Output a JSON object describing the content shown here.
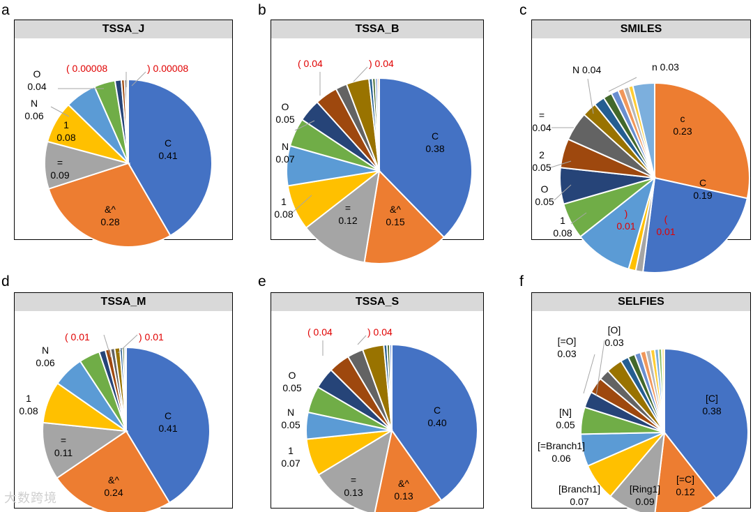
{
  "panels": [
    {
      "letter": "a",
      "title": "TSSA_J",
      "chart_data": {
        "type": "pie",
        "title": "TSSA_J",
        "slices": [
          {
            "label": "C",
            "value": 0.41,
            "color": "#4472c4"
          },
          {
            "label": "&^",
            "value": 0.28,
            "color": "#ed7d31"
          },
          {
            "label": "=",
            "value": 0.09,
            "color": "#a5a5a5"
          },
          {
            "label": "1",
            "value": 0.08,
            "color": "#ffc000"
          },
          {
            "label": "N",
            "value": 0.06,
            "color": "#5b9bd5"
          },
          {
            "label": "O",
            "value": 0.04,
            "color": "#70ad47"
          },
          {
            "label": "",
            "value": 0.012,
            "color": "#264478"
          },
          {
            "label": "",
            "value": 0.006,
            "color": "#9e480e"
          },
          {
            "label": "",
            "value": 0.004,
            "color": "#636363"
          },
          {
            "label": "",
            "value": 0.003,
            "color": "#997300"
          },
          {
            "label": "(",
            "value": 8e-05,
            "color": "#255e91"
          },
          {
            "label": ")",
            "value": 8e-05,
            "color": "#43682b"
          }
        ],
        "annotations": [
          {
            "label": "C",
            "value_text": "0.41"
          },
          {
            "label": "&^",
            "value_text": "0.28"
          },
          {
            "label": "=",
            "value_text": "0.09"
          },
          {
            "label": "1",
            "value_text": "0.08"
          },
          {
            "label": "N",
            "value_text": "0.06"
          },
          {
            "label": "O",
            "value_text": "0.04"
          },
          {
            "label": "(",
            "value_text": "0.00008"
          },
          {
            "label": ")",
            "value_text": "0.00008"
          }
        ]
      }
    },
    {
      "letter": "b",
      "title": "TSSA_B",
      "chart_data": {
        "type": "pie",
        "title": "TSSA_B",
        "slices": [
          {
            "label": "C",
            "value": 0.38,
            "color": "#4472c4"
          },
          {
            "label": "&^",
            "value": 0.15,
            "color": "#ed7d31"
          },
          {
            "label": "=",
            "value": 0.12,
            "color": "#a5a5a5"
          },
          {
            "label": "1",
            "value": 0.08,
            "color": "#ffc000"
          },
          {
            "label": "N",
            "value": 0.07,
            "color": "#5b9bd5"
          },
          {
            "label": "O",
            "value": 0.05,
            "color": "#70ad47"
          },
          {
            "label": "",
            "value": 0.04,
            "color": "#264478"
          },
          {
            "label": "(",
            "value": 0.04,
            "color": "#9e480e"
          },
          {
            "label": "",
            "value": 0.02,
            "color": "#636363"
          },
          {
            "label": ")",
            "value": 0.04,
            "color": "#997300"
          },
          {
            "label": "",
            "value": 0.006,
            "color": "#255e91"
          },
          {
            "label": "",
            "value": 0.005,
            "color": "#43682b"
          },
          {
            "label": "",
            "value": 0.004,
            "color": "#698ed0"
          },
          {
            "label": "",
            "value": 0.003,
            "color": "#f1975a"
          }
        ],
        "annotations": [
          {
            "label": "C",
            "value_text": "0.38"
          },
          {
            "label": "&^",
            "value_text": "0.15"
          },
          {
            "label": "=",
            "value_text": "0.12"
          },
          {
            "label": "1",
            "value_text": "0.08"
          },
          {
            "label": "N",
            "value_text": "0.07"
          },
          {
            "label": "O",
            "value_text": "0.05"
          },
          {
            "label": "(",
            "value_text": "0.04"
          },
          {
            "label": ")",
            "value_text": "0.04"
          }
        ]
      }
    },
    {
      "letter": "c",
      "title": "SMILES",
      "chart_data": {
        "type": "pie",
        "title": "SMILES",
        "slices": [
          {
            "label": "c",
            "value": 0.23,
            "color": "#ed7d31"
          },
          {
            "label": "C",
            "value": 0.19,
            "color": "#4472c4"
          },
          {
            "label": "(",
            "value": 0.01,
            "color": "#a5a5a5"
          },
          {
            "label": ")",
            "value": 0.01,
            "color": "#ffc000"
          },
          {
            "label": "1",
            "value": 0.08,
            "color": "#5b9bd5"
          },
          {
            "label": "O",
            "value": 0.05,
            "color": "#70ad47"
          },
          {
            "label": "2",
            "value": 0.05,
            "color": "#264478"
          },
          {
            "label": "=",
            "value": 0.04,
            "color": "#9e480e"
          },
          {
            "label": "N",
            "value": 0.04,
            "color": "#636363"
          },
          {
            "label": "",
            "value": 0.02,
            "color": "#997300"
          },
          {
            "label": "",
            "value": 0.015,
            "color": "#255e91"
          },
          {
            "label": "",
            "value": 0.012,
            "color": "#43682b"
          },
          {
            "label": "",
            "value": 0.01,
            "color": "#698ed0"
          },
          {
            "label": "",
            "value": 0.008,
            "color": "#f1975a"
          },
          {
            "label": "",
            "value": 0.007,
            "color": "#b7b7b7"
          },
          {
            "label": "",
            "value": 0.006,
            "color": "#ffcd33"
          },
          {
            "label": "n",
            "value": 0.03,
            "color": "#7cafdd"
          }
        ],
        "annotations": [
          {
            "label": "c",
            "value_text": "0.23"
          },
          {
            "label": "C",
            "value_text": "0.19"
          },
          {
            "label": "(",
            "value_text": "0.01"
          },
          {
            "label": ")",
            "value_text": "0.01"
          },
          {
            "label": "1",
            "value_text": "0.08"
          },
          {
            "label": "O",
            "value_text": "0.05"
          },
          {
            "label": "2",
            "value_text": "0.05"
          },
          {
            "label": "=",
            "value_text": "0.04"
          },
          {
            "label": "N",
            "value_text": "0.04"
          },
          {
            "label": "n",
            "value_text": "0.03"
          }
        ]
      }
    },
    {
      "letter": "d",
      "title": "TSSA_M",
      "chart_data": {
        "type": "pie",
        "title": "TSSA_M",
        "slices": [
          {
            "label": "C",
            "value": 0.41,
            "color": "#4472c4"
          },
          {
            "label": "&^",
            "value": 0.24,
            "color": "#ed7d31"
          },
          {
            "label": "=",
            "value": 0.11,
            "color": "#a5a5a5"
          },
          {
            "label": "1",
            "value": 0.08,
            "color": "#ffc000"
          },
          {
            "label": "N",
            "value": 0.06,
            "color": "#5b9bd5"
          },
          {
            "label": "",
            "value": 0.04,
            "color": "#70ad47"
          },
          {
            "label": "",
            "value": 0.012,
            "color": "#264478"
          },
          {
            "label": "(",
            "value": 0.01,
            "color": "#9e480e"
          },
          {
            "label": "",
            "value": 0.008,
            "color": "#636363"
          },
          {
            "label": ")",
            "value": 0.01,
            "color": "#997300"
          },
          {
            "label": "",
            "value": 0.005,
            "color": "#255e91"
          },
          {
            "label": "",
            "value": 0.004,
            "color": "#43682b"
          },
          {
            "label": "",
            "value": 0.003,
            "color": "#698ed0"
          }
        ],
        "annotations": [
          {
            "label": "C",
            "value_text": "0.41"
          },
          {
            "label": "&^",
            "value_text": "0.24"
          },
          {
            "label": "=",
            "value_text": "0.11"
          },
          {
            "label": "1",
            "value_text": "0.08"
          },
          {
            "label": "N",
            "value_text": "0.06"
          },
          {
            "label": "(",
            "value_text": "0.01"
          },
          {
            "label": ")",
            "value_text": "0.01"
          }
        ]
      }
    },
    {
      "letter": "e",
      "title": "TSSA_S",
      "chart_data": {
        "type": "pie",
        "title": "TSSA_S",
        "slices": [
          {
            "label": "C",
            "value": 0.4,
            "color": "#4472c4"
          },
          {
            "label": "&^",
            "value": 0.13,
            "color": "#ed7d31"
          },
          {
            "label": "=",
            "value": 0.13,
            "color": "#a5a5a5"
          },
          {
            "label": "1",
            "value": 0.07,
            "color": "#ffc000"
          },
          {
            "label": "N",
            "value": 0.05,
            "color": "#5b9bd5"
          },
          {
            "label": "O",
            "value": 0.05,
            "color": "#70ad47"
          },
          {
            "label": "",
            "value": 0.04,
            "color": "#264478"
          },
          {
            "label": "(",
            "value": 0.04,
            "color": "#9e480e"
          },
          {
            "label": "",
            "value": 0.03,
            "color": "#636363"
          },
          {
            "label": ")",
            "value": 0.04,
            "color": "#997300"
          },
          {
            "label": "",
            "value": 0.006,
            "color": "#255e91"
          },
          {
            "label": "",
            "value": 0.005,
            "color": "#43682b"
          },
          {
            "label": "",
            "value": 0.004,
            "color": "#698ed0"
          }
        ],
        "annotations": [
          {
            "label": "C",
            "value_text": "0.40"
          },
          {
            "label": "&^",
            "value_text": "0.13"
          },
          {
            "label": "=",
            "value_text": "0.13"
          },
          {
            "label": "1",
            "value_text": "0.07"
          },
          {
            "label": "N",
            "value_text": "0.05"
          },
          {
            "label": "O",
            "value_text": "0.05"
          },
          {
            "label": "(",
            "value_text": "0.04"
          },
          {
            "label": ")",
            "value_text": "0.04"
          }
        ]
      }
    },
    {
      "letter": "f",
      "title": "SELFIES",
      "chart_data": {
        "type": "pie",
        "title": "SELFIES",
        "slices": [
          {
            "label": "[C]",
            "value": 0.38,
            "color": "#4472c4"
          },
          {
            "label": "[=C]",
            "value": 0.12,
            "color": "#ed7d31"
          },
          {
            "label": "[Ring1]",
            "value": 0.09,
            "color": "#a5a5a5"
          },
          {
            "label": "[Branch1]",
            "value": 0.07,
            "color": "#ffc000"
          },
          {
            "label": "[=Branch1]",
            "value": 0.06,
            "color": "#5b9bd5"
          },
          {
            "label": "[N]",
            "value": 0.05,
            "color": "#70ad47"
          },
          {
            "label": "",
            "value": 0.03,
            "color": "#264478"
          },
          {
            "label": "[=O]",
            "value": 0.03,
            "color": "#9e480e"
          },
          {
            "label": "",
            "value": 0.02,
            "color": "#636363"
          },
          {
            "label": "[O]",
            "value": 0.03,
            "color": "#997300"
          },
          {
            "label": "",
            "value": 0.015,
            "color": "#255e91"
          },
          {
            "label": "",
            "value": 0.013,
            "color": "#43682b"
          },
          {
            "label": "",
            "value": 0.011,
            "color": "#698ed0"
          },
          {
            "label": "",
            "value": 0.01,
            "color": "#f1975a"
          },
          {
            "label": "",
            "value": 0.009,
            "color": "#b7b7b7"
          },
          {
            "label": "",
            "value": 0.008,
            "color": "#ffcd33"
          },
          {
            "label": "",
            "value": 0.007,
            "color": "#7cafdd"
          },
          {
            "label": "",
            "value": 0.006,
            "color": "#8cc168"
          },
          {
            "label": "",
            "value": 0.005,
            "color": "#ffe699"
          }
        ],
        "annotations": [
          {
            "label": "[C]",
            "value_text": "0.38"
          },
          {
            "label": "[=C]",
            "value_text": "0.12"
          },
          {
            "label": "[Ring1]",
            "value_text": "0.09"
          },
          {
            "label": "[Branch1]",
            "value_text": "0.07"
          },
          {
            "label": "[=Branch1]",
            "value_text": "0.06"
          },
          {
            "label": "[N]",
            "value_text": "0.05"
          },
          {
            "label": "[=O]",
            "value_text": "0.03"
          },
          {
            "label": "[O]",
            "value_text": "0.03"
          }
        ]
      }
    }
  ],
  "watermark": "大数跨境",
  "colors": {
    "highlight_text": "#e00000",
    "title_bar": "#d9d9d9"
  }
}
